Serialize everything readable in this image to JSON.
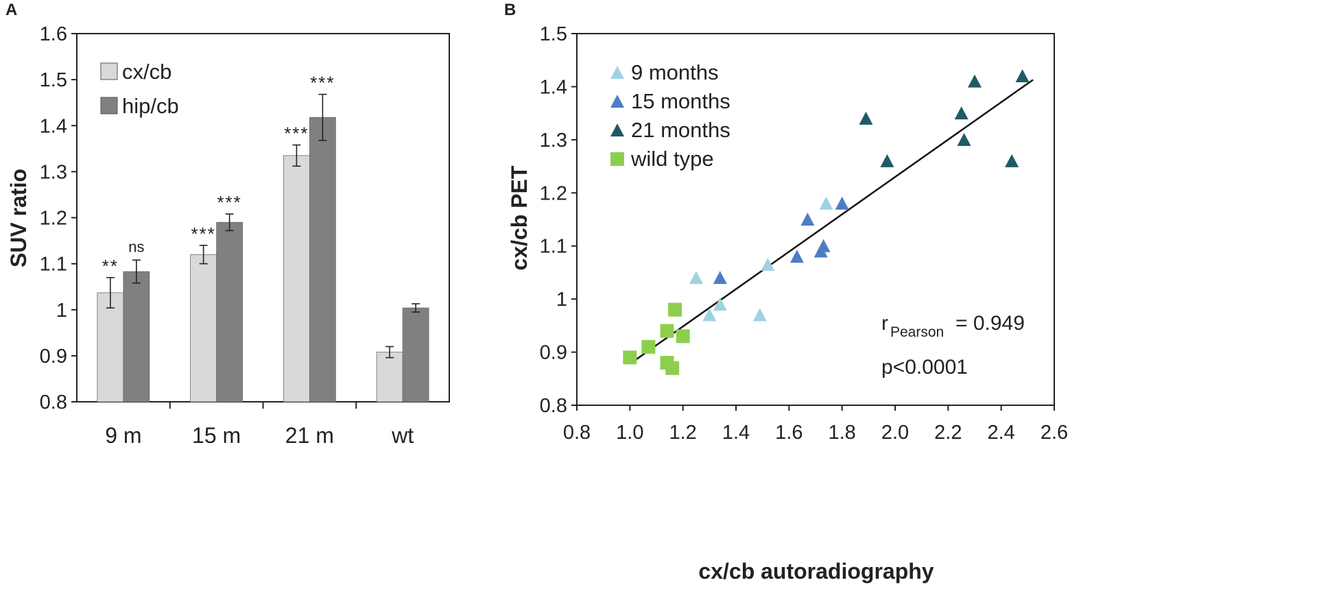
{
  "chart_data": [
    {
      "panel": "A",
      "type": "bar",
      "ylabel": "SUV ratio",
      "xlabel": "",
      "ylim": [
        0.8,
        1.6
      ],
      "yticks": [
        "0.8",
        "0.9",
        "1",
        "1.1",
        "1.2",
        "1.3",
        "1.4",
        "1.5",
        "1.6"
      ],
      "categories": [
        "9 m",
        "15 m",
        "21 m",
        "wt"
      ],
      "series": [
        {
          "name": "cx/cb",
          "color": "#d9d9d9",
          "values": [
            1.037,
            1.12,
            1.335,
            0.908
          ],
          "errors": [
            0.033,
            0.02,
            0.023,
            0.012
          ],
          "annotations": [
            "**",
            "***",
            "***",
            ""
          ]
        },
        {
          "name": "hip/cb",
          "color": "#808080",
          "values": [
            1.083,
            1.19,
            1.418,
            1.004
          ],
          "errors": [
            0.025,
            0.018,
            0.05,
            0.009
          ],
          "annotations": [
            "ns",
            "***",
            "***",
            ""
          ]
        }
      ],
      "legend_position": "top-left"
    },
    {
      "panel": "B",
      "type": "scatter",
      "xlabel": "cx/cb autoradiography",
      "ylabel": "cx/cb PET",
      "xlim": [
        0.8,
        2.6
      ],
      "ylim": [
        0.8,
        1.5
      ],
      "xticks": [
        "0.8",
        "1.0",
        "1.2",
        "1.4",
        "1.6",
        "1.8",
        "2.0",
        "2.2",
        "2.4",
        "2.6"
      ],
      "yticks": [
        "0.8",
        "0.9",
        "1",
        "1.1",
        "1.2",
        "1.3",
        "1.4",
        "1.5"
      ],
      "series": [
        {
          "name": "9 months",
          "marker": "triangle",
          "color": "#9fd2e0",
          "points": [
            [
              1.25,
              1.04
            ],
            [
              1.3,
              0.97
            ],
            [
              1.34,
              0.99
            ],
            [
              1.49,
              0.97
            ],
            [
              1.52,
              1.065
            ],
            [
              1.74,
              1.18
            ]
          ]
        },
        {
          "name": "15 months",
          "marker": "triangle",
          "color": "#4e7ec2",
          "points": [
            [
              1.34,
              1.04
            ],
            [
              1.63,
              1.08
            ],
            [
              1.67,
              1.15
            ],
            [
              1.72,
              1.09
            ],
            [
              1.73,
              1.1
            ],
            [
              1.8,
              1.18
            ]
          ]
        },
        {
          "name": "21 months",
          "marker": "triangle",
          "color": "#1f5a66",
          "points": [
            [
              1.89,
              1.34
            ],
            [
              1.97,
              1.26
            ],
            [
              2.25,
              1.35
            ],
            [
              2.26,
              1.3
            ],
            [
              2.3,
              1.41
            ],
            [
              2.44,
              1.26
            ],
            [
              2.48,
              1.42
            ]
          ]
        },
        {
          "name": "wild type",
          "marker": "square",
          "color": "#8ccf4d",
          "points": [
            [
              1.0,
              0.89
            ],
            [
              1.07,
              0.91
            ],
            [
              1.14,
              0.94
            ],
            [
              1.14,
              0.88
            ],
            [
              1.16,
              0.87
            ],
            [
              1.17,
              0.98
            ],
            [
              1.2,
              0.93
            ]
          ]
        }
      ],
      "fit_line": {
        "x": [
          1.02,
          2.52
        ],
        "y": [
          0.885,
          1.413
        ]
      },
      "stats": {
        "r_main": "r",
        "r_sub": "Pearson",
        "r_value": "= 0.949",
        "p_text": "p<0.0001"
      },
      "legend_position": "top-left"
    }
  ]
}
